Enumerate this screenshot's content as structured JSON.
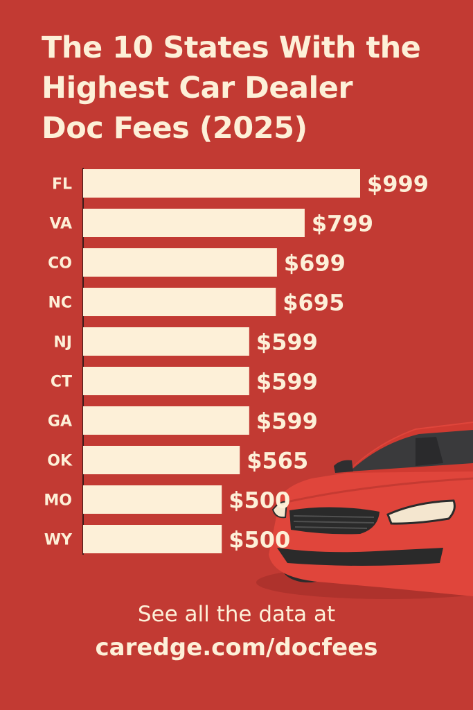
{
  "colors": {
    "background": "#c23a33",
    "bar": "#fdf0d8",
    "text": "#fdf0d8",
    "car_body": "#e0453b"
  },
  "chart_data": {
    "type": "bar",
    "orientation": "horizontal",
    "title_lines": [
      "The 10 States With the",
      "Highest Car Dealer",
      "Doc Fees (2025)"
    ],
    "categories": [
      "FL",
      "VA",
      "CO",
      "NC",
      "NJ",
      "CT",
      "GA",
      "OK",
      "MO",
      "WY"
    ],
    "values": [
      999,
      799,
      699,
      695,
      599,
      599,
      599,
      565,
      500,
      500
    ],
    "value_labels": [
      "$999",
      "$799",
      "$699",
      "$695",
      "$599",
      "$599",
      "$599",
      "$565",
      "$500",
      "$500"
    ],
    "grid": false
  },
  "footer": {
    "line1": "See all the data at",
    "line2": "caredge.com/docfees"
  },
  "illustration": {
    "icon": "red-car-icon"
  }
}
